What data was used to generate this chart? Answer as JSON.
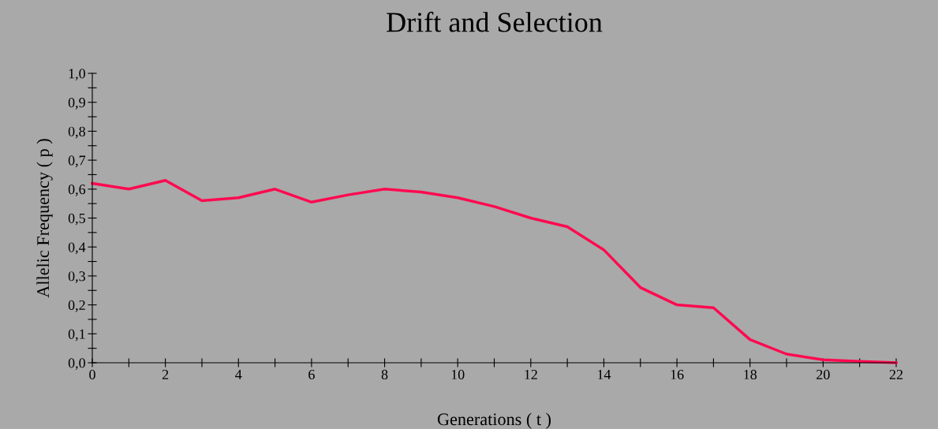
{
  "chart_data": {
    "type": "line",
    "title": "Drift and Selection",
    "xlabel": "Generations ( t )",
    "ylabel": "Allelic Frequency ( p )",
    "x": [
      0,
      1,
      2,
      3,
      4,
      5,
      6,
      7,
      8,
      9,
      10,
      11,
      12,
      13,
      14,
      15,
      16,
      17,
      18,
      19,
      20,
      21,
      22
    ],
    "series": [
      {
        "color": "#ff0a50",
        "values": [
          0.62,
          0.6,
          0.63,
          0.56,
          0.57,
          0.6,
          0.555,
          0.58,
          0.6,
          0.59,
          0.57,
          0.54,
          0.5,
          0.47,
          0.39,
          0.26,
          0.2,
          0.19,
          0.08,
          0.03,
          0.01,
          0.005,
          0.0
        ]
      }
    ],
    "xlim": [
      0,
      22
    ],
    "ylim": [
      0,
      1
    ],
    "xticks": [
      0,
      {
        "value": 1,
        "label": null
      },
      2,
      {
        "value": 3,
        "label": null
      },
      4,
      {
        "value": 5,
        "label": null
      },
      6,
      {
        "value": 7,
        "label": null
      },
      8,
      {
        "value": 9,
        "label": null
      },
      10,
      {
        "value": 11,
        "label": null
      },
      12,
      {
        "value": 13,
        "label": null
      },
      14,
      {
        "value": 15,
        "label": null
      },
      16,
      {
        "value": 17,
        "label": null
      },
      18,
      {
        "value": 19,
        "label": null
      },
      20,
      {
        "value": 21,
        "label": null
      },
      22
    ],
    "yticks": [
      {
        "value": 0,
        "label": "0,0"
      },
      {
        "value": 0.05,
        "label": null
      },
      {
        "value": 0.1,
        "label": "0,1"
      },
      {
        "value": 0.15,
        "label": null
      },
      {
        "value": 0.2,
        "label": "0,2"
      },
      {
        "value": 0.25,
        "label": null
      },
      {
        "value": 0.3,
        "label": "0,3"
      },
      {
        "value": 0.35,
        "label": null
      },
      {
        "value": 0.4,
        "label": "0,4"
      },
      {
        "value": 0.45,
        "label": null
      },
      {
        "value": 0.5,
        "label": "0,5"
      },
      {
        "value": 0.55,
        "label": null
      },
      {
        "value": 0.6,
        "label": "0,6"
      },
      {
        "value": 0.65,
        "label": null
      },
      {
        "value": 0.7,
        "label": "0,7"
      },
      {
        "value": 0.75,
        "label": null
      },
      {
        "value": 0.8,
        "label": "0,8"
      },
      {
        "value": 0.85,
        "label": null
      },
      {
        "value": 0.9,
        "label": "0,9"
      },
      {
        "value": 0.95,
        "label": null
      },
      {
        "value": 1,
        "label": "1,0"
      }
    ],
    "grid": false,
    "legend": false,
    "marker": "none",
    "line_style": "solid"
  }
}
